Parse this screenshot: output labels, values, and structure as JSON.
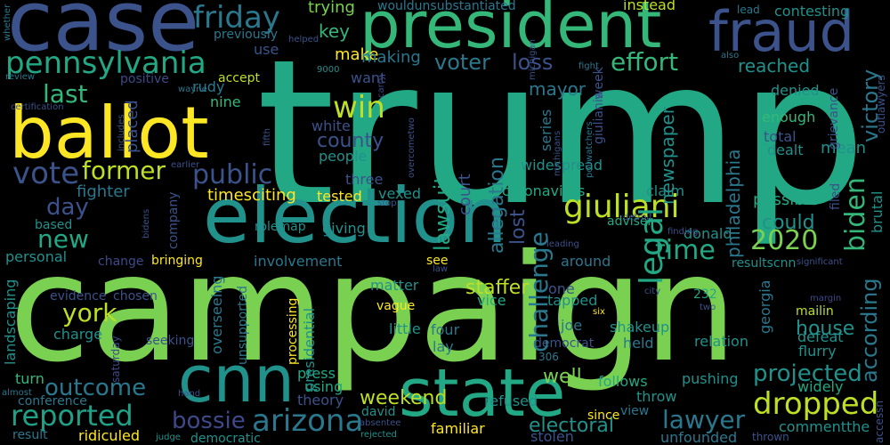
{
  "words": [
    {
      "id": "trump",
      "text": "trump",
      "color": "#22a884"
    },
    {
      "id": "campaign",
      "text": "campaign",
      "color": "#7ad151"
    },
    {
      "id": "case",
      "text": "case",
      "color": "#3b528b"
    },
    {
      "id": "president",
      "text": "president",
      "color": "#35b779"
    },
    {
      "id": "fraud",
      "text": "fraud",
      "color": "#3b528b"
    },
    {
      "id": "ballot",
      "text": "ballot",
      "color": "#fde725"
    },
    {
      "id": "election",
      "text": "election",
      "color": "#21918c"
    },
    {
      "id": "cnn",
      "text": "cnn",
      "color": "#21918c"
    },
    {
      "id": "state",
      "text": "state",
      "color": "#22a884"
    },
    {
      "id": "pennsylvania",
      "text": "pennsylvania",
      "color": "#22a884"
    },
    {
      "id": "friday",
      "text": "friday",
      "color": "#2a788e"
    },
    {
      "id": "giuliani",
      "text": "giuliani",
      "color": "#bddf26"
    },
    {
      "id": "legal",
      "text": "legal",
      "color": "#22a884"
    },
    {
      "id": "challenge",
      "text": "challenge",
      "color": "#2a788e"
    },
    {
      "id": "arizona",
      "text": "arizona",
      "color": "#2a788e"
    },
    {
      "id": "dropped",
      "text": "dropped",
      "color": "#bddf26"
    },
    {
      "id": "reported",
      "text": "reported",
      "color": "#1fa187"
    },
    {
      "id": "outcome",
      "text": "outcome",
      "color": "#2a788e"
    },
    {
      "id": "lawyer",
      "text": "lawyer",
      "color": "#2a788e"
    },
    {
      "id": "biden",
      "text": "biden",
      "color": "#35b779"
    },
    {
      "id": "according",
      "text": "according",
      "color": "#2a788e"
    },
    {
      "id": "victory",
      "text": "victory",
      "color": "#2a788e"
    },
    {
      "id": "win",
      "text": "win",
      "color": "#bddf26"
    },
    {
      "id": "vote",
      "text": "vote",
      "color": "#3b528b"
    },
    {
      "id": "former",
      "text": "former",
      "color": "#bddf26"
    },
    {
      "id": "public",
      "text": "public",
      "color": "#3b528b"
    },
    {
      "id": "last",
      "text": "last",
      "color": "#35b779"
    },
    {
      "id": "new",
      "text": "new",
      "color": "#22a884"
    },
    {
      "id": "york",
      "text": "york",
      "color": "#bddf26"
    },
    {
      "id": "effort",
      "text": "effort",
      "color": "#35b779"
    },
    {
      "id": "voter",
      "text": "voter",
      "color": "#2a788e"
    },
    {
      "id": "loss",
      "text": "loss",
      "color": "#3b528b"
    },
    {
      "id": "lawsuit",
      "text": "lawsuit",
      "color": "#22a884"
    },
    {
      "id": "allegation",
      "text": "allegation",
      "color": "#2a788e"
    },
    {
      "id": "county",
      "text": "county",
      "color": "#3b528b"
    },
    {
      "id": "time",
      "text": "time",
      "color": "#22a884"
    },
    {
      "id": "2020",
      "text": "2020",
      "color": "#7ad151"
    },
    {
      "id": "projected",
      "text": "projected",
      "color": "#21918c"
    },
    {
      "id": "bossie",
      "text": "bossie",
      "color": "#3e4989"
    },
    {
      "id": "electoral",
      "text": "electoral",
      "color": "#21918c"
    },
    {
      "id": "day",
      "text": "day",
      "color": "#3b528b"
    },
    {
      "id": "could",
      "text": "could",
      "color": "#21918c"
    },
    {
      "id": "house",
      "text": "house",
      "color": "#21918c"
    },
    {
      "id": "weekend",
      "text": "weekend",
      "color": "#bddf26"
    },
    {
      "id": "well",
      "text": "well",
      "color": "#7ad151"
    },
    {
      "id": "staffer",
      "text": "staffer",
      "color": "#bddf26"
    },
    {
      "id": "reached",
      "text": "reached",
      "color": "#21918c"
    },
    {
      "id": "mayor",
      "text": "mayor",
      "color": "#2a788e"
    },
    {
      "id": "fighter",
      "text": "fighter",
      "color": "#2a788e"
    },
    {
      "id": "timesciting",
      "text": "timesciting",
      "color": "#fde725"
    },
    {
      "id": "make",
      "text": "make",
      "color": "#fde725"
    },
    {
      "id": "making",
      "text": "making",
      "color": "#2a788e"
    },
    {
      "id": "key",
      "text": "key",
      "color": "#35b779"
    },
    {
      "id": "trying",
      "text": "trying",
      "color": "#7ad151"
    },
    {
      "id": "instead",
      "text": "instead",
      "color": "#bddf26"
    },
    {
      "id": "contesting",
      "text": "contesting",
      "color": "#21918c"
    },
    {
      "id": "lead",
      "text": "lead",
      "color": "#2a788e"
    },
    {
      "id": "wouldunsubstantiated",
      "text": "wouldunsubstantiated",
      "color": "#2a788e"
    },
    {
      "id": "previously",
      "text": "previously",
      "color": "#2a788e"
    },
    {
      "id": "use",
      "text": "use",
      "color": "#3b528b"
    },
    {
      "id": "want",
      "text": "want",
      "color": "#3b528b"
    },
    {
      "id": "rudy",
      "text": "rudy",
      "color": "#2a788e"
    },
    {
      "id": "accept",
      "text": "accept",
      "color": "#bddf26"
    },
    {
      "id": "positive",
      "text": "positive",
      "color": "#3e4989"
    },
    {
      "id": "nine",
      "text": "nine",
      "color": "#35b779"
    },
    {
      "id": "placed",
      "text": "placed",
      "color": "#3b528b"
    },
    {
      "id": "white",
      "text": "white",
      "color": "#3b528b"
    },
    {
      "id": "people",
      "text": "people",
      "color": "#21918c"
    },
    {
      "id": "three",
      "text": "three",
      "color": "#3b528b"
    },
    {
      "id": "tested",
      "text": "tested",
      "color": "#fde725"
    },
    {
      "id": "vexed",
      "text": "vexed",
      "color": "#21918c"
    },
    {
      "id": "coronavirus",
      "text": "coronavirus",
      "color": "#22a884"
    },
    {
      "id": "claim",
      "text": "claim",
      "color": "#21918c"
    },
    {
      "id": "denied",
      "text": "denied",
      "color": "#21918c"
    },
    {
      "id": "enough",
      "text": "enough",
      "color": "#35b779"
    },
    {
      "id": "mean",
      "text": "mean",
      "color": "#21918c"
    },
    {
      "id": "total",
      "text": "total",
      "color": "#3b528b"
    },
    {
      "id": "dealt",
      "text": "dealt",
      "color": "#21918c"
    },
    {
      "id": "possible",
      "text": "possible",
      "color": "#22a884"
    },
    {
      "id": "filed",
      "text": "filed",
      "color": "#3b528b"
    },
    {
      "id": "brutal",
      "text": "brutal",
      "color": "#21918c"
    },
    {
      "id": "grievance",
      "text": "grievance",
      "color": "#3b528b"
    },
    {
      "id": "philadelphia",
      "text": "philadelphia",
      "color": "#2a788e"
    },
    {
      "id": "newspaper",
      "text": "newspaper",
      "color": "#21918c"
    },
    {
      "id": "widespread",
      "text": "widespread",
      "color": "#21918c"
    },
    {
      "id": "series",
      "text": "series",
      "color": "#2a788e"
    },
    {
      "id": "giulianis",
      "text": "giulianis",
      "color": "#3b528b"
    },
    {
      "id": "week",
      "text": "week",
      "color": "#3b528b"
    },
    {
      "id": "based",
      "text": "based",
      "color": "#21918c"
    },
    {
      "id": "personal",
      "text": "personal",
      "color": "#21918c"
    },
    {
      "id": "company",
      "text": "company",
      "color": "#3b528b"
    },
    {
      "id": "rolemap",
      "text": "rolemap",
      "color": "#21918c"
    },
    {
      "id": "giving",
      "text": "giving",
      "color": "#21918c"
    },
    {
      "id": "court",
      "text": "court",
      "color": "#3b528b"
    },
    {
      "id": "lost",
      "text": "lost",
      "color": "#3b528b"
    },
    {
      "id": "adviser",
      "text": "adviser",
      "color": "#22a884"
    },
    {
      "id": "donald",
      "text": "donald",
      "color": "#21918c"
    },
    {
      "id": "minor",
      "text": "minor",
      "color": "#3b528b"
    },
    {
      "id": "resultscnn",
      "text": "resultscnn",
      "color": "#21918c"
    },
    {
      "id": "significant",
      "text": "significant",
      "color": "#3b528b"
    },
    {
      "id": "change",
      "text": "change",
      "color": "#3e4989"
    },
    {
      "id": "bringing",
      "text": "bringing",
      "color": "#fde725"
    },
    {
      "id": "involvement",
      "text": "involvement",
      "color": "#2a788e"
    },
    {
      "id": "matter",
      "text": "matter",
      "color": "#21918c"
    },
    {
      "id": "see",
      "text": "see",
      "color": "#fde725"
    },
    {
      "id": "around",
      "text": "around",
      "color": "#2a788e"
    },
    {
      "id": "landscaping",
      "text": "landscaping",
      "color": "#21918c"
    },
    {
      "id": "evidence",
      "text": "evidence",
      "color": "#3b528b"
    },
    {
      "id": "chosen",
      "text": "chosen",
      "color": "#3b528b"
    },
    {
      "id": "charge",
      "text": "charge",
      "color": "#21918c"
    },
    {
      "id": "overseeing",
      "text": "overseeing",
      "color": "#2a788e"
    },
    {
      "id": "vague",
      "text": "vague",
      "color": "#fde725"
    },
    {
      "id": "little",
      "text": "little",
      "color": "#21918c"
    },
    {
      "id": "one",
      "text": "one",
      "color": "#3b528b"
    },
    {
      "id": "tapped",
      "text": "tapped",
      "color": "#21918c"
    },
    {
      "id": "vice",
      "text": "vice",
      "color": "#22a884"
    },
    {
      "id": "joe",
      "text": "joe",
      "color": "#2a788e"
    },
    {
      "id": "shakeup",
      "text": "shakeup",
      "color": "#21918c"
    },
    {
      "id": "held",
      "text": "held",
      "color": "#2a788e"
    },
    {
      "id": "relation",
      "text": "relation",
      "color": "#21918c"
    },
    {
      "id": "defeat",
      "text": "defeat",
      "color": "#21918c"
    },
    {
      "id": "flurry",
      "text": "flurry",
      "color": "#21918c"
    },
    {
      "id": "widely",
      "text": "widely",
      "color": "#22a884"
    },
    {
      "id": "georgia",
      "text": "georgia",
      "color": "#2a788e"
    },
    {
      "id": "mailin",
      "text": "mailin",
      "color": "#bddf26"
    },
    {
      "id": "232",
      "text": "232",
      "color": "#22a884"
    },
    {
      "id": "six",
      "text": "six",
      "color": "#fde725"
    },
    {
      "id": "two",
      "text": "two",
      "color": "#3b528b"
    },
    {
      "id": "four",
      "text": "four",
      "color": "#2a788e"
    },
    {
      "id": "lay",
      "text": "lay",
      "color": "#2a788e"
    },
    {
      "id": "democrat",
      "text": "democrat",
      "color": "#3b528b"
    },
    {
      "id": "306",
      "text": "306",
      "color": "#2a788e"
    },
    {
      "id": "follows",
      "text": "follows",
      "color": "#22a884"
    },
    {
      "id": "throw",
      "text": "throw",
      "color": "#21918c"
    },
    {
      "id": "view",
      "text": "view",
      "color": "#2a788e"
    },
    {
      "id": "pushing",
      "text": "pushing",
      "color": "#21918c"
    },
    {
      "id": "commentthe",
      "text": "commentthe",
      "color": "#21918c"
    },
    {
      "id": "since",
      "text": "since",
      "color": "#fde725"
    },
    {
      "id": "turn",
      "text": "turn",
      "color": "#35b779"
    },
    {
      "id": "conference",
      "text": "conference",
      "color": "#2a788e"
    },
    {
      "id": "ridiculed",
      "text": "ridiculed",
      "color": "#fde725"
    },
    {
      "id": "result",
      "text": "result",
      "color": "#2a788e"
    },
    {
      "id": "democratic",
      "text": "democratic",
      "color": "#21918c"
    },
    {
      "id": "familiar",
      "text": "familiar",
      "color": "#fde725"
    },
    {
      "id": "stolen",
      "text": "stolen",
      "color": "#3b528b"
    },
    {
      "id": "unfounded",
      "text": "unfounded",
      "color": "#2a788e"
    },
    {
      "id": "thrown",
      "text": "thrown",
      "color": "#3b528b"
    },
    {
      "id": "refused",
      "text": "refused",
      "color": "#21918c"
    },
    {
      "id": "david",
      "text": "david",
      "color": "#21918c"
    },
    {
      "id": "absentee",
      "text": "absentee",
      "color": "#3b528b"
    },
    {
      "id": "rejected",
      "text": "rejected",
      "color": "#21918c"
    },
    {
      "id": "press",
      "text": "press",
      "color": "#22a884"
    },
    {
      "id": "using",
      "text": "using",
      "color": "#22a884"
    },
    {
      "id": "theory",
      "text": "theory",
      "color": "#3b528b"
    },
    {
      "id": "processing",
      "text": "processing",
      "color": "#fde725"
    },
    {
      "id": "unsupported",
      "text": "unsupported",
      "color": "#2a788e"
    },
    {
      "id": "presidential",
      "text": "presidential",
      "color": "#21918c"
    },
    {
      "id": "saturday",
      "text": "saturday",
      "color": "#3e4989"
    },
    {
      "id": "seeking",
      "text": "seeking",
      "color": "#3b528b"
    },
    {
      "id": "judge",
      "text": "judge",
      "color": "#21918c"
    },
    {
      "id": "hand",
      "text": "hand",
      "color": "#3b528b"
    },
    {
      "id": "almost",
      "text": "almost",
      "color": "#2a788e"
    },
    {
      "id": "accessn",
      "text": "accessn",
      "color": "#3b528b"
    },
    {
      "id": "outlawyers",
      "text": "outlawyers",
      "color": "#3b528b"
    },
    {
      "id": "wayne",
      "text": "wayne",
      "color": "#2a788e"
    },
    {
      "id": "certification",
      "text": "certification",
      "color": "#3b528b"
    },
    {
      "id": "review",
      "text": "review",
      "color": "#2a788e"
    },
    {
      "id": "whether",
      "text": "whether",
      "color": "#2a788e"
    },
    {
      "id": "helped",
      "text": "helped",
      "color": "#3b528b"
    },
    {
      "id": "9000",
      "text": "9000",
      "color": "#21918c"
    },
    {
      "id": "carry",
      "text": "carry",
      "color": "#3e4989"
    },
    {
      "id": "michigan",
      "text": "michigan",
      "color": "#3b528b"
    },
    {
      "id": "fight",
      "text": "fight",
      "color": "#2a788e"
    },
    {
      "id": "also",
      "text": "also",
      "color": "#2a788e"
    },
    {
      "id": "includes",
      "text": "includes",
      "color": "#3b528b"
    },
    {
      "id": "fifth",
      "text": "fifth",
      "color": "#3b528b"
    },
    {
      "id": "earlier",
      "text": "earlier",
      "color": "#3b528b"
    },
    {
      "id": "overcometwo",
      "text": "overcometwo",
      "color": "#3b528b"
    },
    {
      "id": "michigans",
      "text": "michigans",
      "color": "#3b528b"
    },
    {
      "id": "pollwatchers",
      "text": "pollwatchers",
      "color": "#2a788e"
    },
    {
      "id": "bidens",
      "text": "bidens",
      "color": "#3b528b"
    },
    {
      "id": "detroit",
      "text": "detroit",
      "color": "#3b528b"
    },
    {
      "id": "stop",
      "text": "stop",
      "color": "#3b528b"
    },
    {
      "id": "finding",
      "text": "finding",
      "color": "#3b528b"
    },
    {
      "id": "leading",
      "text": "leading",
      "color": "#3b528b"
    },
    {
      "id": "law",
      "text": "law",
      "color": "#3b528b"
    },
    {
      "id": "city",
      "text": "city",
      "color": "#3b528b"
    },
    {
      "id": "margin",
      "text": "margin",
      "color": "#3e4989"
    }
  ]
}
